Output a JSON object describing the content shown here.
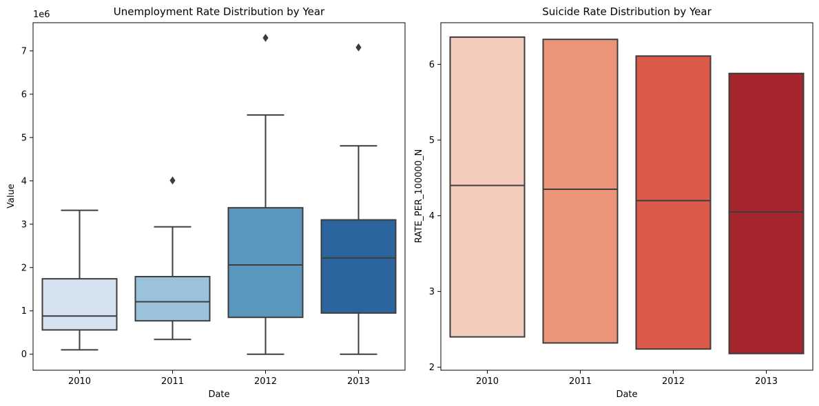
{
  "chart_data": [
    {
      "type": "boxplot",
      "title": "Unemployment Rate Distribution by Year",
      "xlabel": "Date",
      "ylabel": "Value",
      "y_offset_text": "1e6",
      "categories": [
        "2010",
        "2011",
        "2012",
        "2013"
      ],
      "ylim": [
        -0.37,
        7.65
      ],
      "yticks": [
        0,
        1,
        2,
        3,
        4,
        5,
        6,
        7
      ],
      "ytick_labels": [
        "0",
        "1",
        "2",
        "3",
        "4",
        "5",
        "6",
        "7"
      ],
      "colors": [
        "#d4e2f0",
        "#9ac2da",
        "#5b96bd",
        "#2c659d"
      ],
      "edge_color": "#3d3d3d",
      "boxes": [
        {
          "category": "2010",
          "whisker_low": 0.1,
          "q1": 0.56,
          "median": 0.88,
          "q3": 1.74,
          "whisker_high": 3.32,
          "outliers": []
        },
        {
          "category": "2011",
          "whisker_low": 0.34,
          "q1": 0.77,
          "median": 1.21,
          "q3": 1.79,
          "whisker_high": 2.94,
          "outliers": [
            4.01
          ]
        },
        {
          "category": "2012",
          "whisker_low": 0.0,
          "q1": 0.85,
          "median": 2.06,
          "q3": 3.38,
          "whisker_high": 5.52,
          "outliers": [
            7.3
          ]
        },
        {
          "category": "2013",
          "whisker_low": 0.0,
          "q1": 0.95,
          "median": 2.22,
          "q3": 3.1,
          "whisker_high": 4.81,
          "outliers": [
            7.08
          ]
        }
      ]
    },
    {
      "type": "boxplot",
      "title": "Suicide Rate Distribution by Year",
      "xlabel": "Date",
      "ylabel": "RATE_PER_100000_N",
      "categories": [
        "2010",
        "2011",
        "2012",
        "2013"
      ],
      "ylim": [
        1.96,
        6.55
      ],
      "yticks": [
        2,
        3,
        4,
        5,
        6
      ],
      "ytick_labels": [
        "2",
        "3",
        "4",
        "5",
        "6"
      ],
      "colors": [
        "#f3cbbd",
        "#ea957a",
        "#dc5a4a",
        "#a6262d"
      ],
      "edge_color": "#3d3d3d",
      "boxes": [
        {
          "category": "2010",
          "q1": 2.4,
          "median": 4.4,
          "q3": 6.36
        },
        {
          "category": "2011",
          "q1": 2.32,
          "median": 4.35,
          "q3": 6.33
        },
        {
          "category": "2012",
          "q1": 2.24,
          "median": 4.2,
          "q3": 6.11
        },
        {
          "category": "2013",
          "q1": 2.18,
          "median": 4.05,
          "q3": 5.88
        }
      ]
    }
  ]
}
